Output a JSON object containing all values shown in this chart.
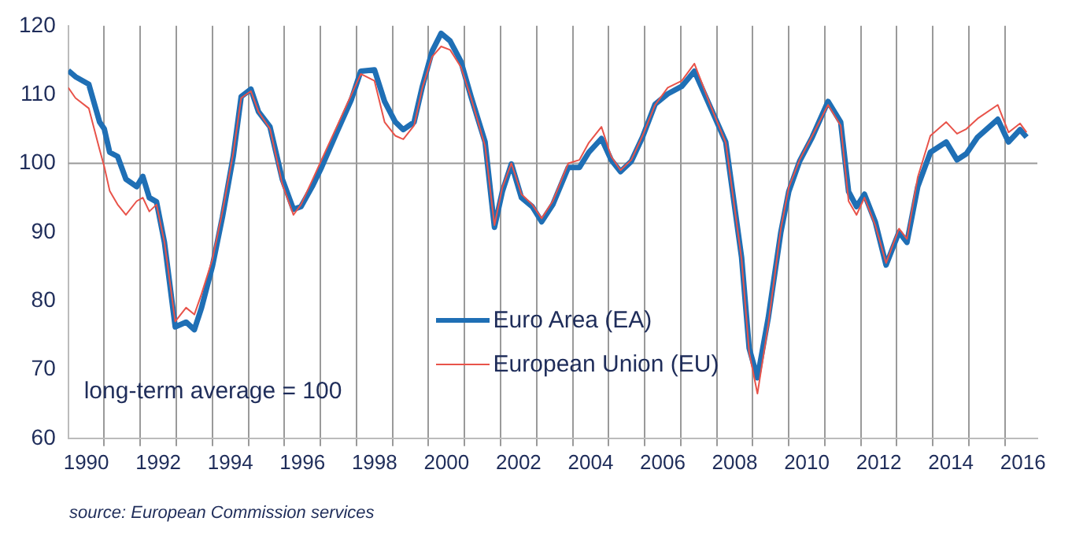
{
  "chart_data": {
    "type": "line",
    "x": [
      1990.0,
      1990.2,
      1990.57,
      1990.87,
      1991.0,
      1991.15,
      1991.37,
      1991.6,
      1991.9,
      1992.07,
      1992.25,
      1992.45,
      1992.67,
      1992.97,
      1993.27,
      1993.5,
      1993.7,
      1994.0,
      1994.28,
      1994.58,
      1994.8,
      1995.07,
      1995.28,
      1995.6,
      1995.94,
      1996.25,
      1996.46,
      1996.77,
      1997.03,
      1997.47,
      1997.86,
      1998.12,
      1998.5,
      1998.78,
      1999.08,
      1999.3,
      1999.6,
      1999.83,
      2000.1,
      2000.35,
      2000.6,
      2000.9,
      2001.18,
      2001.57,
      2001.83,
      2002.05,
      2002.3,
      2002.58,
      2002.88,
      2003.14,
      2003.45,
      2003.88,
      2004.19,
      2004.45,
      2004.8,
      2005.07,
      2005.33,
      2005.63,
      2005.94,
      2006.29,
      2006.64,
      2007.03,
      2007.38,
      2007.82,
      2008.25,
      2008.69,
      2008.9,
      2009.13,
      2009.43,
      2009.78,
      2010.0,
      2010.3,
      2010.65,
      2011.09,
      2011.44,
      2011.66,
      2011.88,
      2012.1,
      2012.4,
      2012.7,
      2013.06,
      2013.28,
      2013.58,
      2013.93,
      2014.37,
      2014.67,
      2014.93,
      2015.24,
      2015.8,
      2016.1,
      2016.42,
      2016.6
    ],
    "series": [
      {
        "name": "Euro Area (EA)",
        "color": "#1f6fb5",
        "values": [
          113.5,
          112.6,
          111.5,
          106,
          105,
          101.6,
          101,
          97.7,
          96.6,
          98.1,
          95,
          94.4,
          88.5,
          76.2,
          76.9,
          75.8,
          79,
          85,
          92.2,
          101,
          109.7,
          110.8,
          107.5,
          105.3,
          97.7,
          93.3,
          93.7,
          96.6,
          99.4,
          104.7,
          109.3,
          113.4,
          113.6,
          109,
          106,
          104.9,
          106,
          111.2,
          116.3,
          118.9,
          117.8,
          114.8,
          109.7,
          103.1,
          90.7,
          95.9,
          99.9,
          95,
          93.7,
          91.5,
          94,
          99.4,
          99.4,
          101.6,
          103.6,
          100.5,
          98.8,
          100.3,
          103.8,
          108.6,
          110.1,
          111.2,
          113.4,
          108.2,
          103.1,
          86.3,
          73.1,
          68.8,
          77.5,
          90,
          95.9,
          100.3,
          103.8,
          109,
          106,
          95.9,
          93.7,
          95.5,
          91.5,
          85.2,
          90,
          88.5,
          96.6,
          101.6,
          103.1,
          100.5,
          101.4,
          103.8,
          106.4,
          103.1,
          104.9,
          103.8
        ]
      },
      {
        "name": "European Union (EU)",
        "color": "#e8534a",
        "values": [
          111,
          109.5,
          108,
          102,
          99.5,
          96,
          94,
          92.5,
          94.5,
          95,
          93,
          94,
          88.5,
          77,
          79,
          78,
          81,
          86,
          93,
          101.5,
          109.5,
          110.5,
          107.5,
          105,
          97,
          92.5,
          94,
          97.5,
          100.5,
          105.5,
          110,
          113,
          112,
          106,
          104,
          103.5,
          105.5,
          111,
          115.5,
          117,
          116.5,
          114,
          109.5,
          102.5,
          91,
          96.5,
          100,
          95.5,
          94,
          92,
          94.5,
          100,
          100.5,
          103,
          105.3,
          101,
          99,
          100.5,
          104,
          108.5,
          111,
          112,
          114.5,
          108.5,
          103,
          86,
          72.5,
          66.5,
          76.5,
          90.5,
          96.5,
          100.5,
          104,
          108.5,
          105.5,
          94.5,
          92.5,
          95,
          91,
          85.5,
          90.5,
          89,
          98,
          104,
          106,
          104.3,
          105,
          106.5,
          108.5,
          104.5,
          105.8,
          104.5
        ]
      }
    ],
    "xlim": [
      1990,
      2016.9
    ],
    "xticks": [
      {
        "value": 1990.5,
        "label": "1990"
      },
      {
        "value": 1991,
        "label": null
      },
      {
        "value": 1992,
        "label": null
      },
      {
        "value": 1992.5,
        "label": "1992"
      },
      {
        "value": 1993,
        "label": null
      },
      {
        "value": 1994,
        "label": null
      },
      {
        "value": 1994.5,
        "label": "1994"
      },
      {
        "value": 1995,
        "label": null
      },
      {
        "value": 1996,
        "label": null
      },
      {
        "value": 1996.5,
        "label": "1996"
      },
      {
        "value": 1997,
        "label": null
      },
      {
        "value": 1998,
        "label": null
      },
      {
        "value": 1998.5,
        "label": "1998"
      },
      {
        "value": 1999,
        "label": null
      },
      {
        "value": 2000,
        "label": null
      },
      {
        "value": 2000.5,
        "label": "2000"
      },
      {
        "value": 2001,
        "label": null
      },
      {
        "value": 2002,
        "label": null
      },
      {
        "value": 2002.5,
        "label": "2002"
      },
      {
        "value": 2003,
        "label": null
      },
      {
        "value": 2004,
        "label": null
      },
      {
        "value": 2004.5,
        "label": "2004"
      },
      {
        "value": 2005,
        "label": null
      },
      {
        "value": 2006,
        "label": null
      },
      {
        "value": 2006.5,
        "label": "2006"
      },
      {
        "value": 2007,
        "label": null
      },
      {
        "value": 2008,
        "label": null
      },
      {
        "value": 2008.5,
        "label": "2008"
      },
      {
        "value": 2009,
        "label": null
      },
      {
        "value": 2010,
        "label": null
      },
      {
        "value": 2010.5,
        "label": "2010"
      },
      {
        "value": 2011,
        "label": null
      },
      {
        "value": 2012,
        "label": null
      },
      {
        "value": 2012.5,
        "label": "2012"
      },
      {
        "value": 2013,
        "label": null
      },
      {
        "value": 2014,
        "label": null
      },
      {
        "value": 2014.5,
        "label": "2014"
      },
      {
        "value": 2015,
        "label": null
      },
      {
        "value": 2016,
        "label": null
      },
      {
        "value": 2016.5,
        "label": "2016"
      }
    ],
    "ylim": [
      60,
      120
    ],
    "yticks": [
      60,
      70,
      80,
      90,
      100,
      110,
      120
    ],
    "grid": "x",
    "legend": "bottom",
    "marker": "none",
    "line_style": "solid",
    "ref_lines": [
      {
        "axis": "y",
        "value": 100,
        "color": "#999999"
      }
    ],
    "annotations": [
      "long-term average = 100",
      "source: European Commission services"
    ]
  }
}
